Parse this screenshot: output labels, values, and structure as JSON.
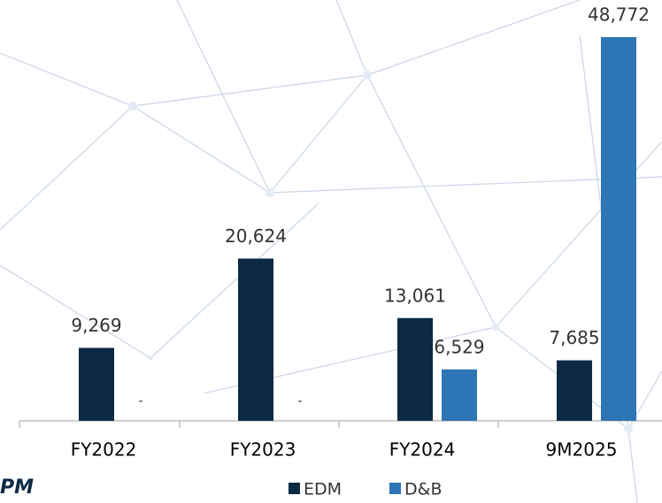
{
  "chart_data": {
    "type": "bar",
    "categories": [
      "FY2022",
      "FY2023",
      "FY2024",
      "9M2025"
    ],
    "series": [
      {
        "name": "EDM",
        "color": "#0d2a45",
        "values": [
          9269,
          20624,
          13061,
          7685
        ],
        "value_labels": [
          "9,269",
          "20,624",
          "13,061",
          "7,685"
        ]
      },
      {
        "name": "D&B",
        "color": "#2e75b6",
        "values": [
          null,
          null,
          6529,
          48772
        ],
        "value_labels": [
          "-",
          "-",
          "6,529",
          "48,772"
        ]
      }
    ],
    "annotation": "PM"
  }
}
